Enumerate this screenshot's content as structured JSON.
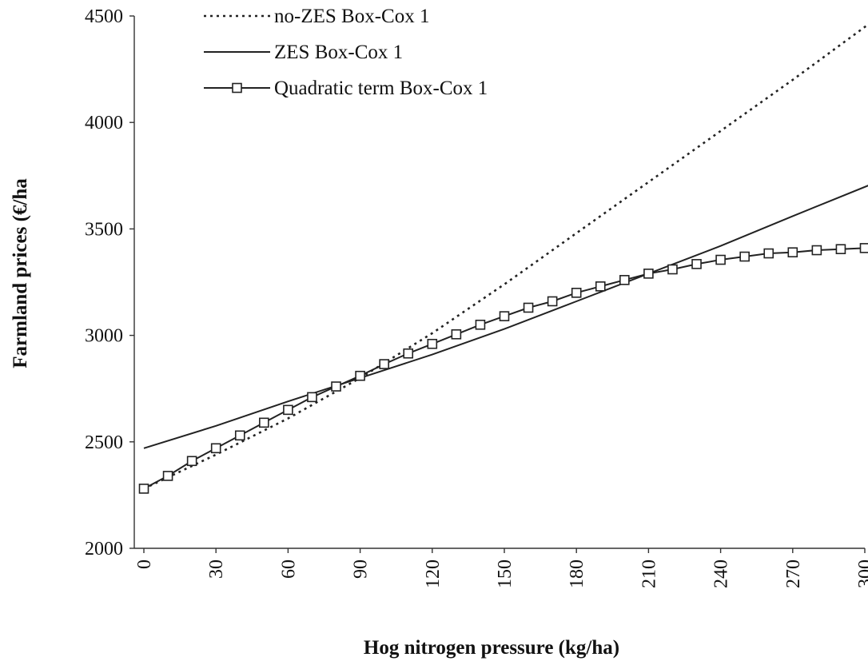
{
  "chart_data": {
    "type": "line",
    "xlabel": "Hog nitrogen pressure (kg/ha)",
    "ylabel": "Farmland prices (€/ha",
    "xlim": [
      0,
      300
    ],
    "ylim": [
      2000,
      4500
    ],
    "x_ticks": [
      "0",
      "30",
      "60",
      "90",
      "120",
      "150",
      "180",
      "210",
      "240",
      "270",
      "300"
    ],
    "y_ticks": [
      "2000",
      "2500",
      "3000",
      "3500",
      "4000",
      "4500"
    ],
    "legend_position": "top-center",
    "series": [
      {
        "name": "no-ZES Box-Cox 1",
        "style": "dotted",
        "color": "#222222",
        "points": [
          [
            0,
            2280
          ],
          [
            30,
            2440
          ],
          [
            60,
            2610
          ],
          [
            90,
            2800
          ],
          [
            120,
            3010
          ],
          [
            150,
            3240
          ],
          [
            180,
            3480
          ],
          [
            210,
            3720
          ],
          [
            240,
            3960
          ],
          [
            270,
            4200
          ],
          [
            305,
            4490
          ]
        ]
      },
      {
        "name": "ZES Box-Cox 1",
        "style": "solid",
        "color": "#222222",
        "points": [
          [
            0,
            2470
          ],
          [
            30,
            2575
          ],
          [
            60,
            2690
          ],
          [
            90,
            2800
          ],
          [
            120,
            2910
          ],
          [
            150,
            3030
          ],
          [
            180,
            3160
          ],
          [
            210,
            3290
          ],
          [
            240,
            3420
          ],
          [
            270,
            3560
          ],
          [
            305,
            3720
          ]
        ]
      },
      {
        "name": "Quadratic term Box-Cox 1",
        "style": "solid-square-markers",
        "color": "#222222",
        "points": [
          [
            0,
            2280
          ],
          [
            10,
            2340
          ],
          [
            20,
            2410
          ],
          [
            30,
            2470
          ],
          [
            40,
            2530
          ],
          [
            50,
            2590
          ],
          [
            60,
            2650
          ],
          [
            70,
            2710
          ],
          [
            80,
            2760
          ],
          [
            90,
            2810
          ],
          [
            100,
            2865
          ],
          [
            110,
            2915
          ],
          [
            120,
            2960
          ],
          [
            130,
            3005
          ],
          [
            140,
            3050
          ],
          [
            150,
            3090
          ],
          [
            160,
            3130
          ],
          [
            170,
            3160
          ],
          [
            180,
            3200
          ],
          [
            190,
            3230
          ],
          [
            200,
            3260
          ],
          [
            210,
            3290
          ],
          [
            220,
            3310
          ],
          [
            230,
            3335
          ],
          [
            240,
            3355
          ],
          [
            250,
            3370
          ],
          [
            260,
            3385
          ],
          [
            270,
            3390
          ],
          [
            280,
            3400
          ],
          [
            290,
            3405
          ],
          [
            300,
            3410
          ]
        ]
      }
    ]
  }
}
